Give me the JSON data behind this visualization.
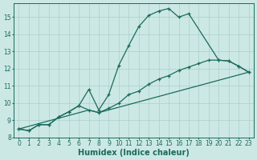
{
  "xlabel": "Humidex (Indice chaleur)",
  "xlim": [
    -0.5,
    23.5
  ],
  "ylim": [
    8,
    15.8
  ],
  "yticks": [
    8,
    9,
    10,
    11,
    12,
    13,
    14,
    15
  ],
  "xticks": [
    0,
    1,
    2,
    3,
    4,
    5,
    6,
    7,
    8,
    9,
    10,
    11,
    12,
    13,
    14,
    15,
    16,
    17,
    18,
    19,
    20,
    21,
    22,
    23
  ],
  "bg_color": "#cce8e5",
  "grid_color": "#aacfcc",
  "line_color": "#1a6b5a",
  "line1_x": [
    0,
    1,
    2,
    3,
    4,
    5,
    6,
    7,
    8,
    9,
    10,
    11,
    12,
    13,
    14,
    15,
    16,
    17,
    20,
    21,
    22,
    23
  ],
  "line1_y": [
    8.5,
    8.4,
    8.75,
    8.75,
    9.2,
    9.5,
    9.85,
    10.8,
    9.6,
    10.5,
    12.2,
    13.35,
    14.45,
    15.1,
    15.35,
    15.5,
    15.0,
    15.2,
    12.5,
    12.45,
    12.15,
    11.8
  ],
  "line2_x": [
    0,
    1,
    2,
    3,
    4,
    5,
    6,
    7,
    8,
    9,
    10,
    11,
    12,
    13,
    14,
    15,
    16,
    17,
    18,
    19,
    20,
    21,
    22,
    23
  ],
  "line2_y": [
    8.5,
    8.4,
    8.75,
    8.75,
    9.2,
    9.5,
    9.85,
    9.6,
    9.45,
    9.7,
    10.0,
    10.5,
    10.7,
    11.1,
    11.4,
    11.6,
    11.9,
    12.1,
    12.3,
    12.5,
    12.5,
    12.45,
    12.15,
    11.8
  ],
  "line3_x": [
    0,
    7,
    8,
    23
  ],
  "line3_y": [
    8.5,
    9.6,
    9.45,
    11.8
  ],
  "marker_size": 3.5,
  "linewidth": 0.9,
  "font_color": "#1a6b5a",
  "tick_fontsize": 5.5,
  "label_fontsize": 7.0
}
